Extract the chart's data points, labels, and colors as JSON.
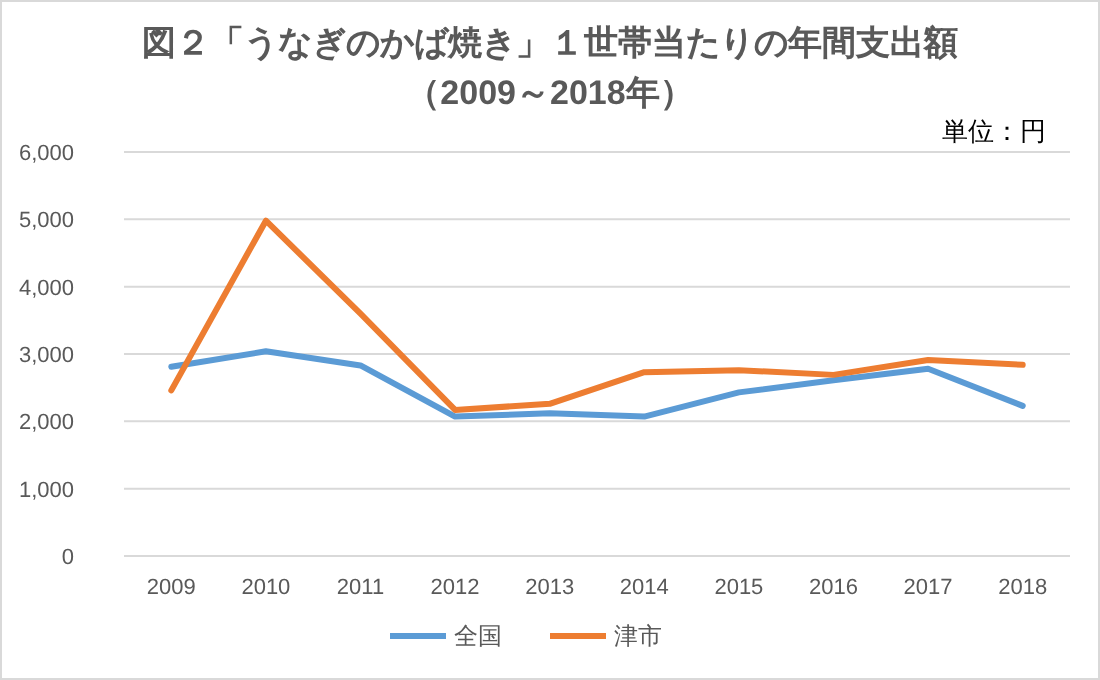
{
  "chart_data": {
    "type": "line",
    "title": "図２「うなぎのかば焼き」１世帯当たりの年間支出額",
    "subtitle": "（2009～2018年）",
    "annotations": [
      "単位：円"
    ],
    "categories": [
      "2009",
      "2010",
      "2011",
      "2012",
      "2013",
      "2014",
      "2015",
      "2016",
      "2017",
      "2018"
    ],
    "series": [
      {
        "name": "全国",
        "color": "#5b9bd5",
        "values": [
          2810,
          3040,
          2830,
          2070,
          2120,
          2070,
          2430,
          2610,
          2780,
          2230
        ]
      },
      {
        "name": "津市",
        "color": "#ed7d31",
        "values": [
          2460,
          4980,
          3600,
          2170,
          2260,
          2730,
          2760,
          2690,
          2910,
          2840
        ]
      }
    ],
    "ylim": [
      0,
      6000
    ],
    "yticks": [
      {
        "value": 0,
        "label": "0"
      },
      {
        "value": 1000,
        "label": "1,000"
      },
      {
        "value": 2000,
        "label": "2,000"
      },
      {
        "value": 3000,
        "label": "3,000"
      },
      {
        "value": 4000,
        "label": "4,000"
      },
      {
        "value": 5000,
        "label": "5,000"
      },
      {
        "value": 6000,
        "label": "6,000"
      }
    ],
    "grid": "y",
    "legend": "bottom",
    "marker": "none",
    "line_style": "solid"
  }
}
